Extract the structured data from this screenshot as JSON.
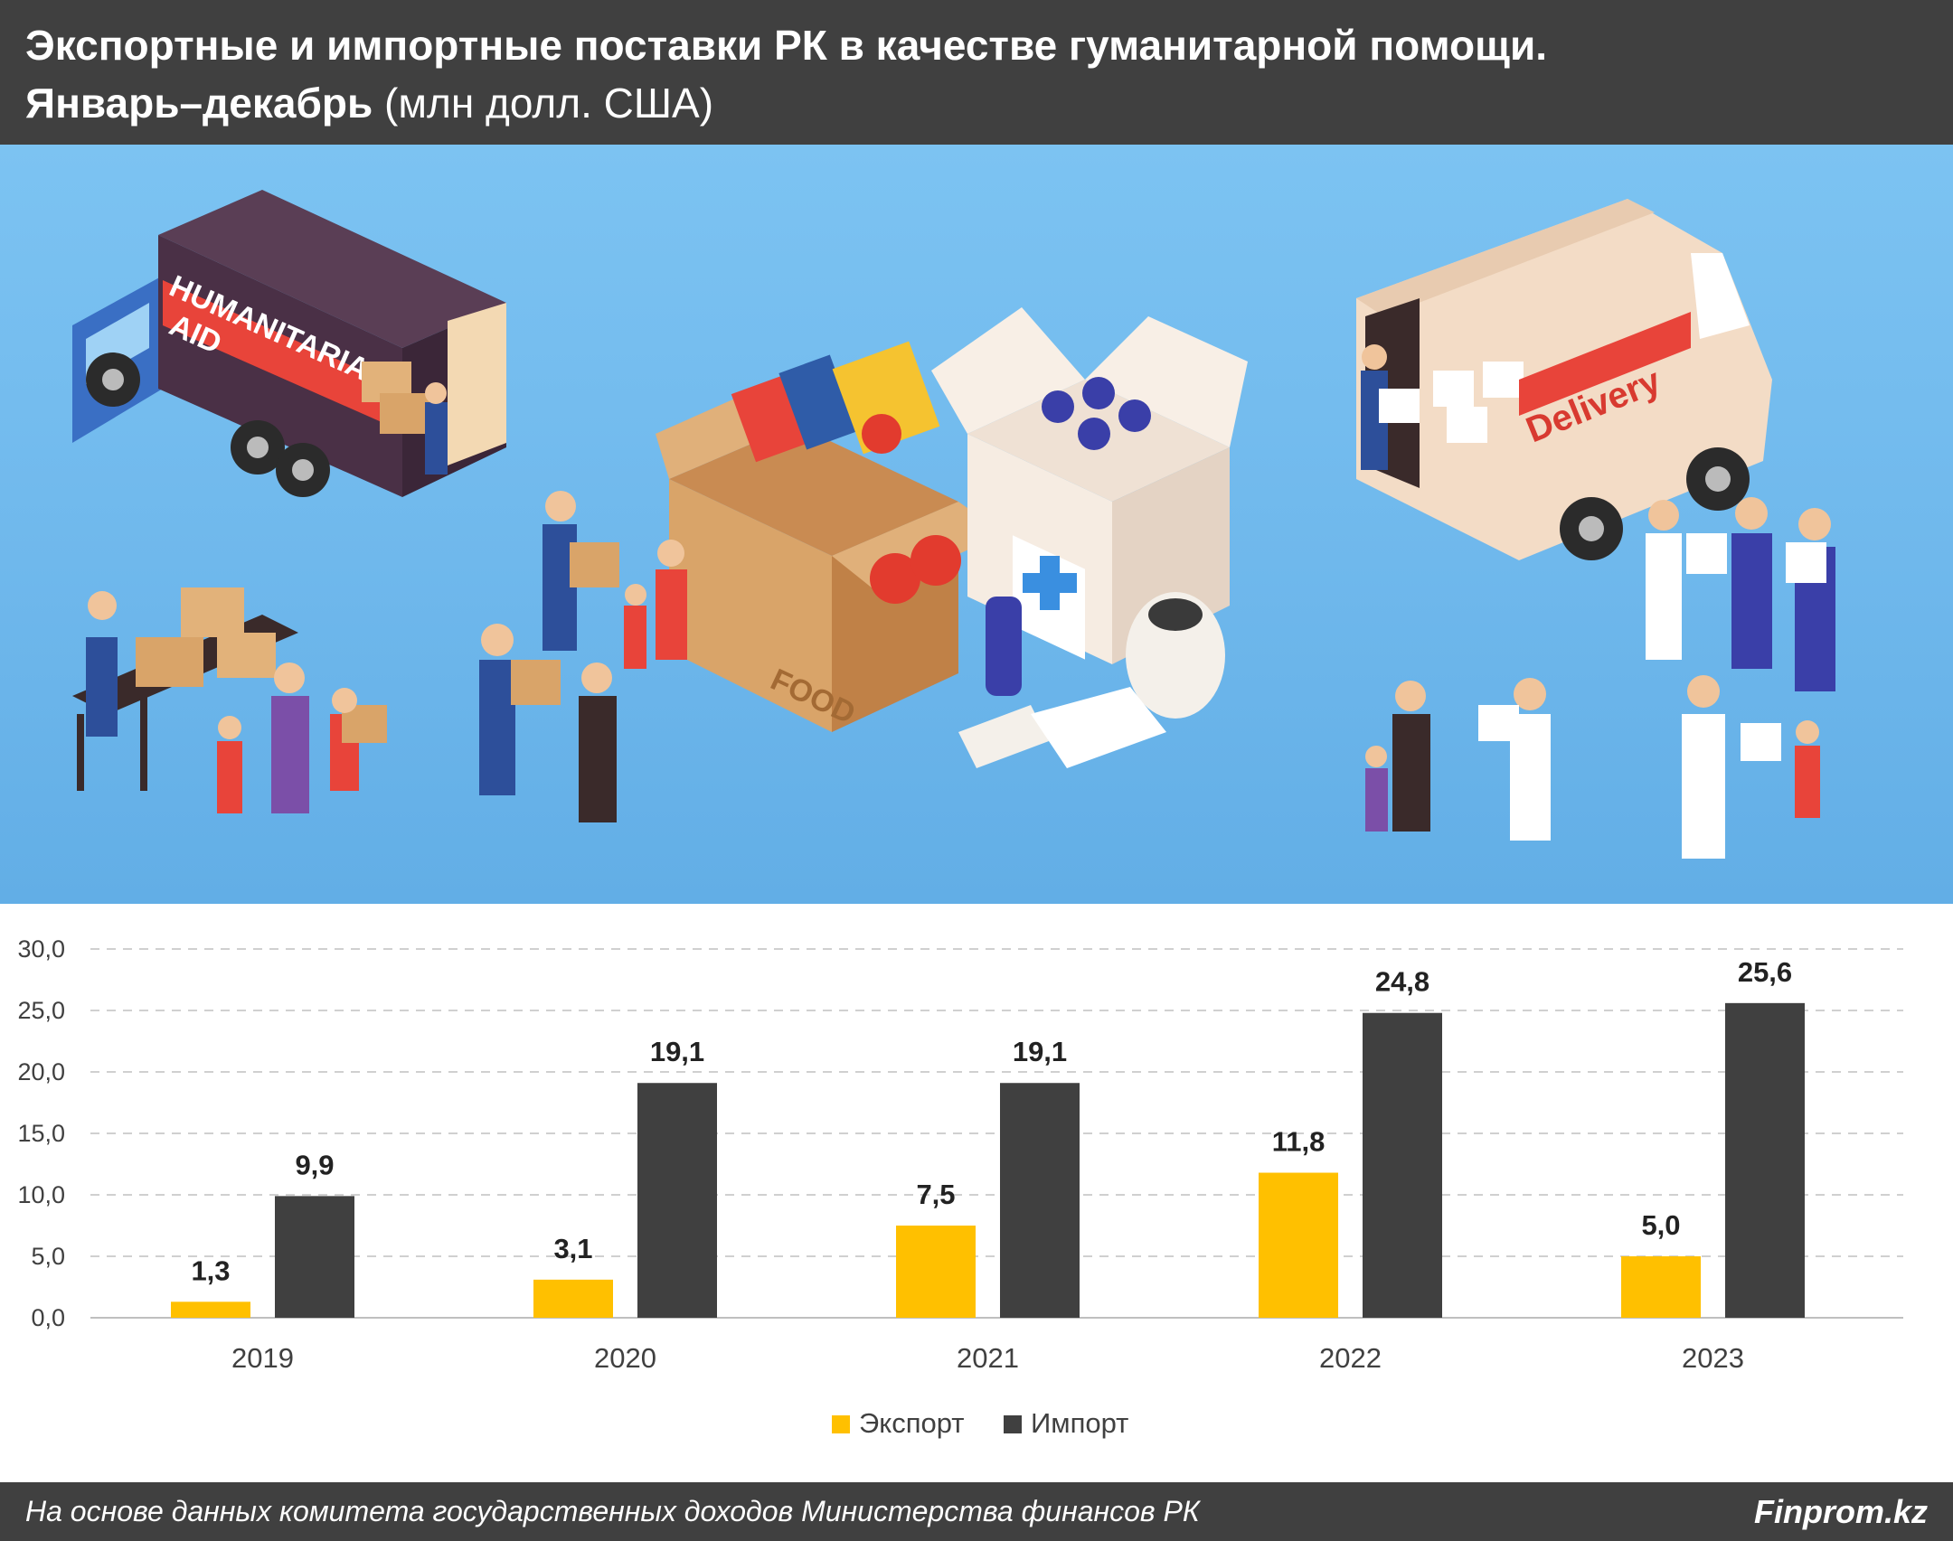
{
  "header": {
    "title": "Экспортные и импортные поставки РК в качестве гуманитарной помощи.",
    "period": "Январь–декабрь",
    "unit": "(млн долл. США)"
  },
  "illustration": {
    "truck_text_1": "HUMANITARIAN",
    "truck_text_2": "AID",
    "box_text": "FOOD",
    "van_text": "Delivery"
  },
  "chart_data": {
    "type": "bar",
    "categories": [
      "2019",
      "2020",
      "2021",
      "2022",
      "2023"
    ],
    "series": [
      {
        "name": "Экспорт",
        "color": "#ffc000",
        "values": [
          1.3,
          3.1,
          7.5,
          11.8,
          5.0
        ],
        "labels": [
          "1,3",
          "3,1",
          "7,5",
          "11,8",
          "5,0"
        ]
      },
      {
        "name": "Импорт",
        "color": "#404040",
        "values": [
          9.9,
          19.1,
          19.1,
          24.8,
          25.6
        ],
        "labels": [
          "9,9",
          "19,1",
          "19,1",
          "24,8",
          "25,6"
        ]
      }
    ],
    "ylim": [
      0,
      30
    ],
    "yticks": [
      "0,0",
      "5,0",
      "10,0",
      "15,0",
      "20,0",
      "25,0",
      "30,0"
    ],
    "grid": true,
    "legend_position": "bottom-center"
  },
  "footer": {
    "source": "На основе данных комитета государственных доходов Министерства финансов РК",
    "brand": "Finprom.kz"
  }
}
